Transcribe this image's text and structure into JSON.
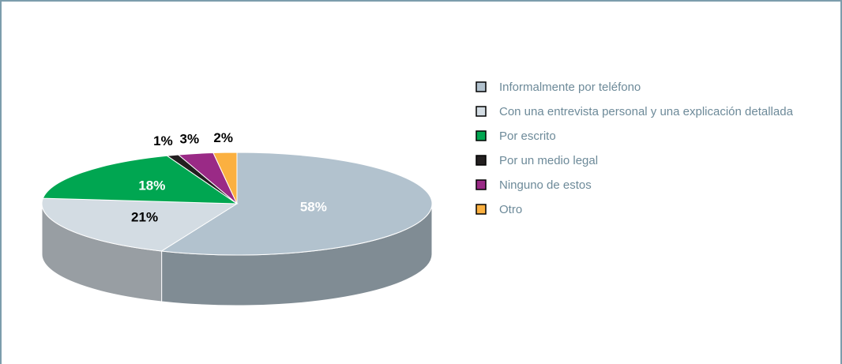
{
  "chart_data": {
    "type": "pie",
    "categories": [
      "Informalmente por teléfono",
      "Con una entrevista personal y una explicación detallada",
      "Por escrito",
      "Por un medio legal",
      "Ninguno de estos",
      "Otro"
    ],
    "values": [
      58,
      21,
      18,
      1,
      3,
      2
    ],
    "value_labels": [
      "58%",
      "21%",
      "18%",
      "1%",
      "3%",
      "2%"
    ],
    "colors": [
      "#b2c2ce",
      "#d3dce3",
      "#00a651",
      "#231f20",
      "#9a2a86",
      "#fbb040"
    ],
    "legend": "right"
  }
}
